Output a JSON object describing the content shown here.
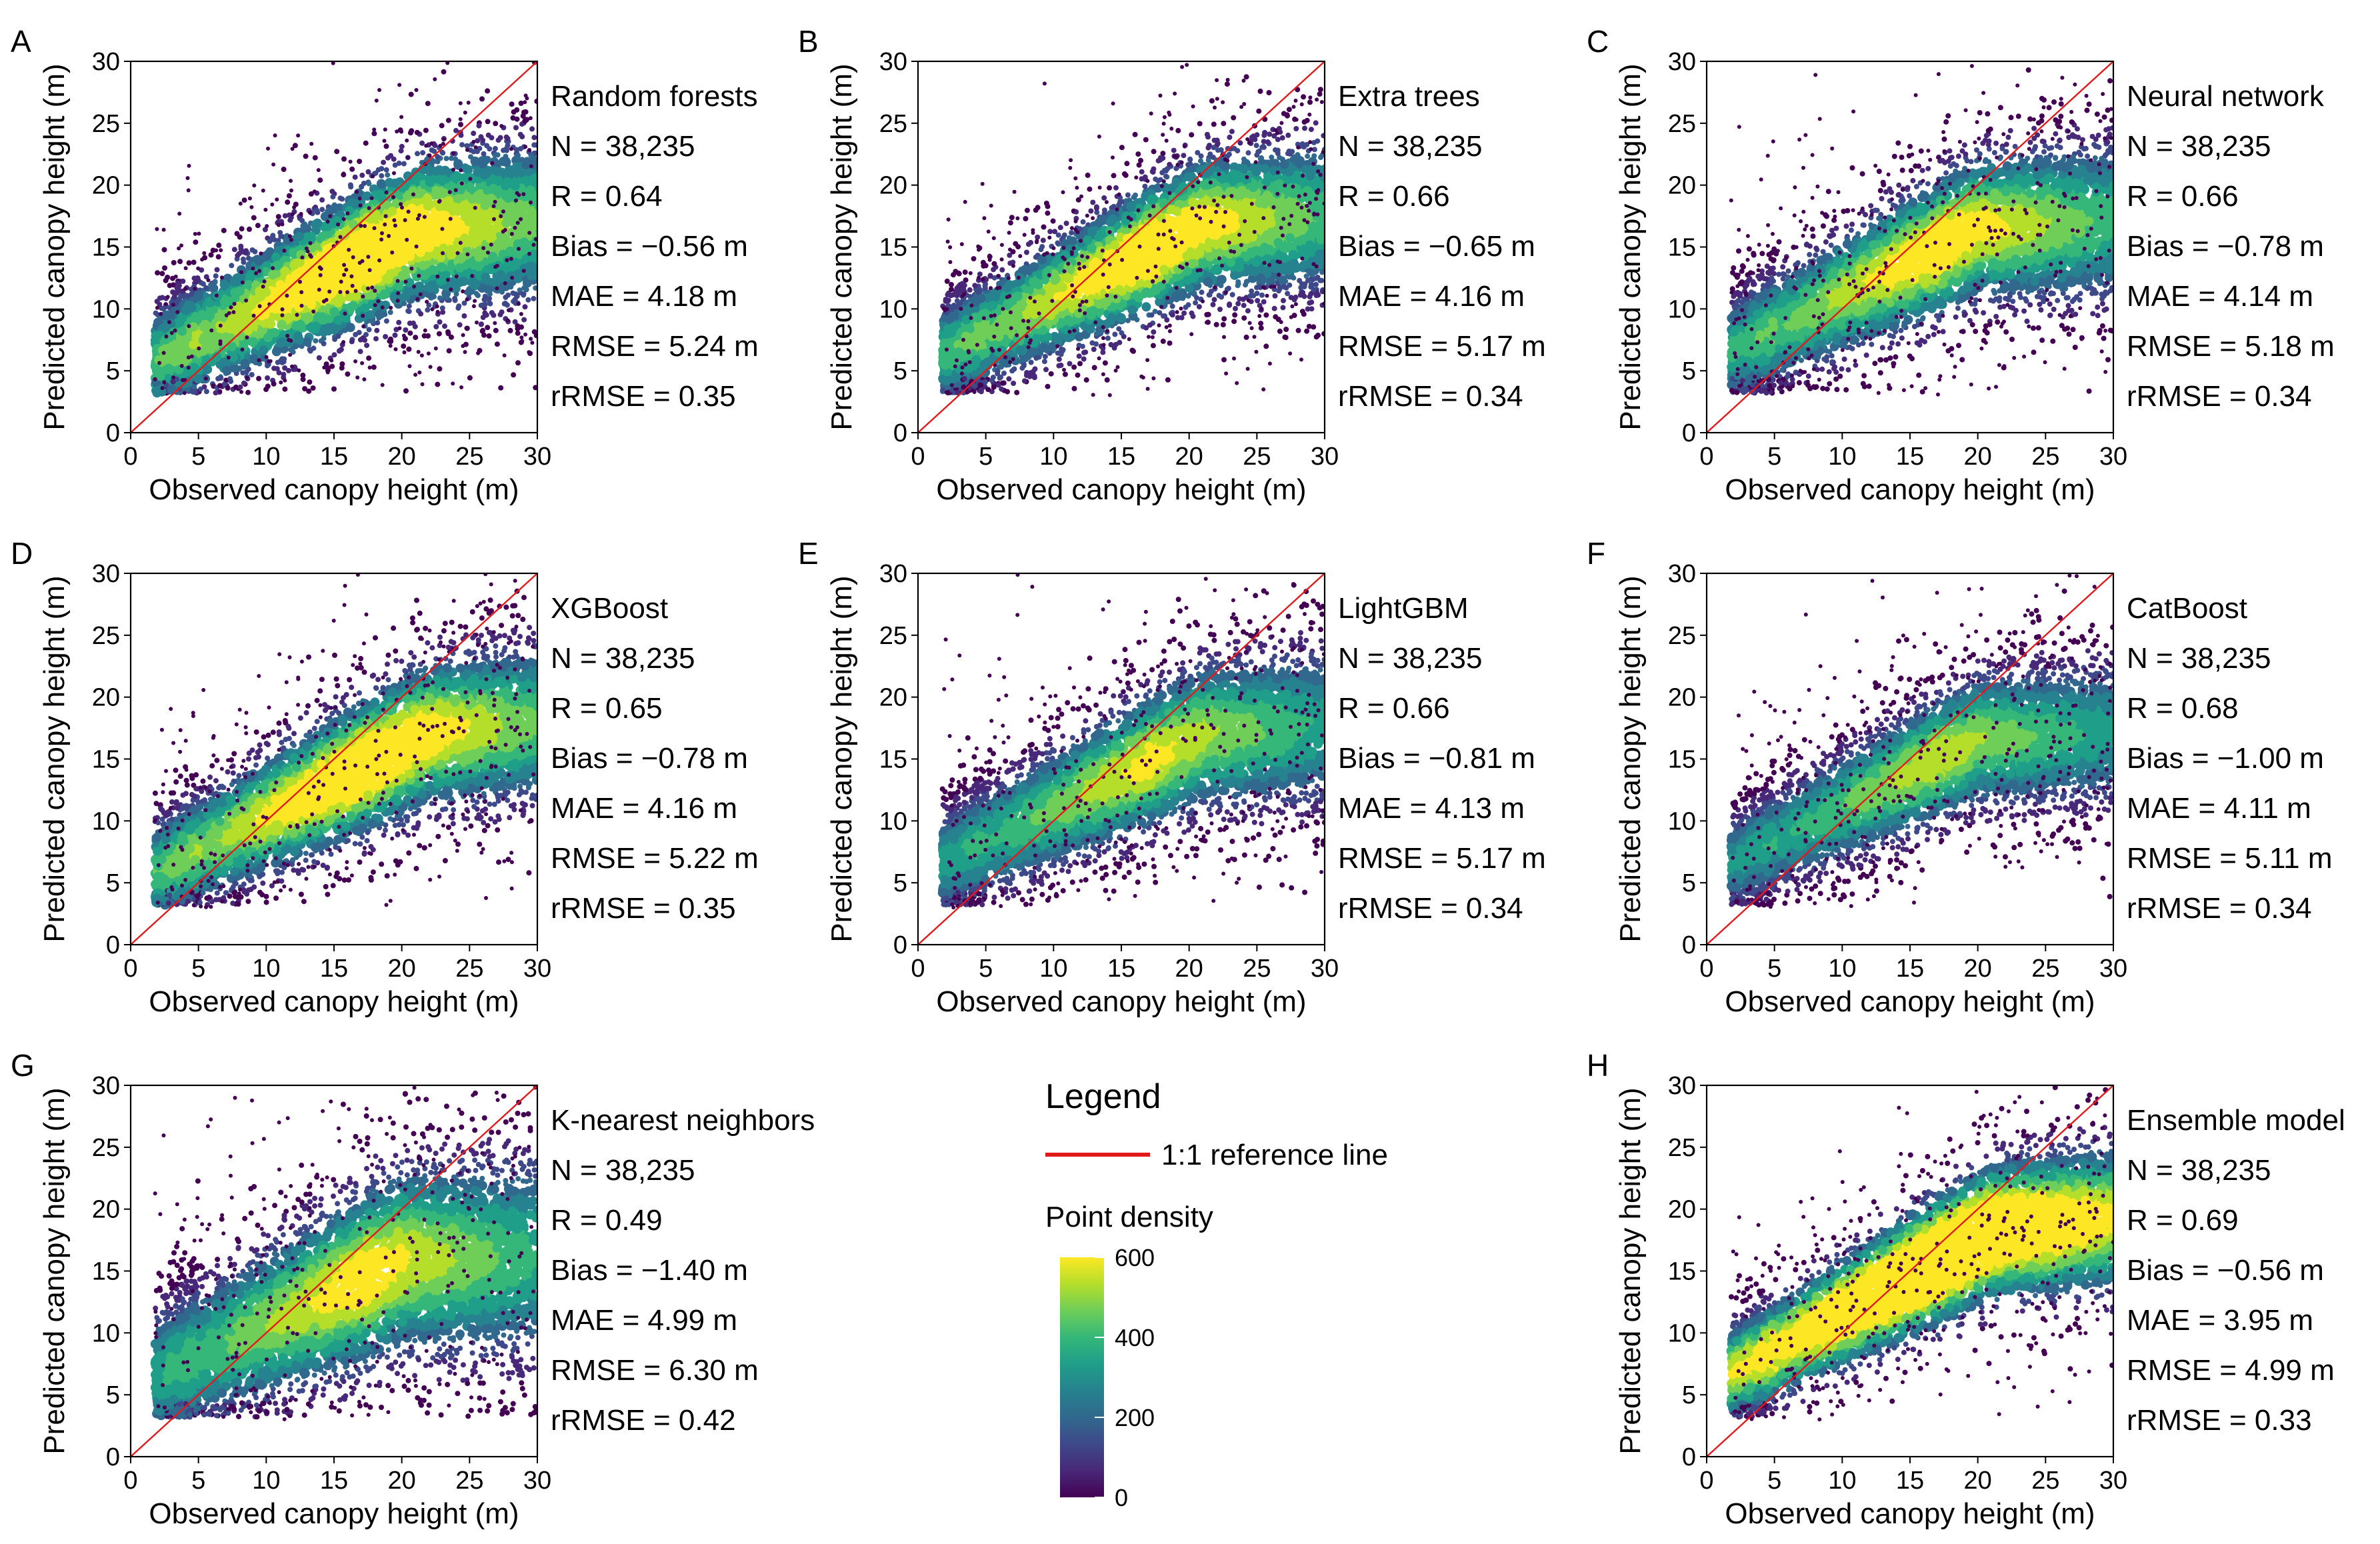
{
  "figure": {
    "x_axis_label": "Observed canopy height (m)",
    "y_axis_label": "Predicted canopy height (m)",
    "axis_ticks": [
      "0",
      "5",
      "10",
      "15",
      "20",
      "25",
      "30"
    ]
  },
  "chart_data": [
    {
      "letter": "A",
      "type": "scatter",
      "title": "Random forests",
      "n": "N = 38,235",
      "r": "R = 0.64",
      "bias": "Bias = −0.56 m",
      "mae": "MAE = 4.18 m",
      "rmse": "RMSE = 5.24 m",
      "rrmse": "rRMSE = 0.35",
      "xlabel": "Observed canopy height (m)",
      "ylabel": "Predicted canopy height (m)",
      "xlim": [
        0,
        30
      ],
      "ylim": [
        0,
        30
      ],
      "fit": {
        "intercept": 4.8,
        "slope": 0.55,
        "spread": 3.3,
        "density": 1.0,
        "knot": 21,
        "flat": 0.15
      },
      "ref_line": [
        [
          0,
          0
        ],
        [
          30,
          30
        ]
      ]
    },
    {
      "letter": "B",
      "type": "scatter",
      "title": "Extra trees",
      "n": "N = 38,235",
      "r": "R = 0.66",
      "bias": "Bias = −0.65 m",
      "mae": "MAE = 4.16 m",
      "rmse": "RMSE = 5.17 m",
      "rrmse": "rRMSE = 0.34",
      "xlabel": "Observed canopy height (m)",
      "ylabel": "Predicted canopy height (m)",
      "xlim": [
        0,
        30
      ],
      "ylim": [
        0,
        30
      ],
      "fit": {
        "intercept": 5.3,
        "slope": 0.55,
        "spread": 3.1,
        "density": 0.95,
        "knot": 21,
        "flat": 0.15
      },
      "ref_line": [
        [
          0,
          0
        ],
        [
          30,
          30
        ]
      ]
    },
    {
      "letter": "C",
      "type": "scatter",
      "title": "Neural network",
      "n": "N = 38,235",
      "r": "R = 0.66",
      "bias": "Bias = −0.78 m",
      "mae": "MAE = 4.14 m",
      "rmse": "RMSE = 5.18 m",
      "rrmse": "rRMSE = 0.34",
      "xlabel": "Observed canopy height (m)",
      "ylabel": "Predicted canopy height (m)",
      "xlim": [
        0,
        30
      ],
      "ylim": [
        0,
        30
      ],
      "fit": {
        "intercept": 5.6,
        "slope": 0.55,
        "spread": 3.3,
        "density": 0.9,
        "knot": 20,
        "flat": 0.1
      },
      "ref_line": [
        [
          0,
          0
        ],
        [
          30,
          30
        ]
      ]
    },
    {
      "letter": "D",
      "type": "scatter",
      "title": "XGBoost",
      "n": "N = 38,235",
      "r": "R = 0.65",
      "bias": "Bias = −0.78 m",
      "mae": "MAE = 4.16 m",
      "rmse": "RMSE = 5.22 m",
      "rrmse": "rRMSE = 0.35",
      "xlabel": "Observed canopy height (m)",
      "ylabel": "Predicted canopy height (m)",
      "xlim": [
        0,
        30
      ],
      "ylim": [
        0,
        30
      ],
      "fit": {
        "intercept": 4.8,
        "slope": 0.56,
        "spread": 3.2,
        "density": 1.0,
        "knot": 22,
        "flat": 0.2
      },
      "ref_line": [
        [
          0,
          0
        ],
        [
          30,
          30
        ]
      ]
    },
    {
      "letter": "E",
      "type": "scatter",
      "title": "LightGBM",
      "n": "N = 38,235",
      "r": "R = 0.66",
      "bias": "Bias = −0.81 m",
      "mae": "MAE = 4.13 m",
      "rmse": "RMSE = 5.17 m",
      "rrmse": "rRMSE = 0.34",
      "xlabel": "Observed canopy height (m)",
      "ylabel": "Predicted canopy height (m)",
      "xlim": [
        0,
        30
      ],
      "ylim": [
        0,
        30
      ],
      "fit": {
        "intercept": 5.6,
        "slope": 0.54,
        "spread": 3.3,
        "density": 0.8,
        "knot": 21,
        "flat": 0.15
      },
      "ref_line": [
        [
          0,
          0
        ],
        [
          30,
          30
        ]
      ]
    },
    {
      "letter": "F",
      "type": "scatter",
      "title": "CatBoost",
      "n": "N = 38,235",
      "r": "R = 0.68",
      "bias": "Bias = −1.00 m",
      "mae": "MAE = 4.11 m",
      "rmse": "RMSE = 5.11 m",
      "rrmse": "rRMSE = 0.34",
      "xlabel": "Observed canopy height (m)",
      "ylabel": "Predicted canopy height (m)",
      "xlim": [
        0,
        30
      ],
      "ylim": [
        0,
        30
      ],
      "fit": {
        "intercept": 5.6,
        "slope": 0.55,
        "spread": 3.0,
        "density": 0.75,
        "knot": 20,
        "flat": 0.1
      },
      "ref_line": [
        [
          0,
          0
        ],
        [
          30,
          30
        ]
      ]
    },
    {
      "letter": "G",
      "type": "scatter",
      "title": "K-nearest neighbors",
      "n": "N = 38,235",
      "r": "R = 0.49",
      "bias": "Bias = −1.40 m",
      "mae": "MAE = 4.99 m",
      "rmse": "RMSE = 6.30 m",
      "rrmse": "rRMSE = 0.42",
      "xlabel": "Observed canopy height (m)",
      "ylabel": "Predicted canopy height (m)",
      "xlim": [
        0,
        30
      ],
      "ylim": [
        0,
        30
      ],
      "fit": {
        "intercept": 5.5,
        "slope": 0.52,
        "spread": 4.2,
        "density": 0.85,
        "knot": 20,
        "flat": 0.05
      },
      "ref_line": [
        [
          0,
          0
        ],
        [
          30,
          30
        ]
      ]
    },
    {
      "letter": "H",
      "type": "scatter",
      "title": "Ensemble model",
      "n": "N = 38,235",
      "r": "R = 0.69",
      "bias": "Bias = −0.56 m",
      "mae": "MAE = 3.95 m",
      "rmse": "RMSE = 4.99 m",
      "rrmse": "rRMSE = 0.33",
      "xlabel": "Observed canopy height (m)",
      "ylabel": "Predicted canopy height (m)",
      "xlim": [
        0,
        30
      ],
      "ylim": [
        0,
        30
      ],
      "fit": {
        "intercept": 5.6,
        "slope": 0.6,
        "spread": 2.9,
        "density": 1.3,
        "knot": 21,
        "flat": 0.2
      },
      "ref_line": [
        [
          0,
          0
        ],
        [
          30,
          30
        ]
      ]
    }
  ],
  "legend": {
    "title": "Legend",
    "line_label": "1:1 reference line",
    "line_color": "#e31a1c",
    "density_title": "Point density",
    "colorbar_ticks": [
      "600",
      "400",
      "200",
      "0"
    ],
    "colorbar_values": [
      600,
      400,
      200,
      0
    ],
    "colorbar_range": [
      0,
      600
    ],
    "colormap": "viridis"
  },
  "colors": {
    "viridis": [
      "#440154",
      "#482878",
      "#3e4989",
      "#31688e",
      "#26828e",
      "#1f9e89",
      "#35b779",
      "#6ece58",
      "#b5de2b",
      "#fde725"
    ]
  }
}
